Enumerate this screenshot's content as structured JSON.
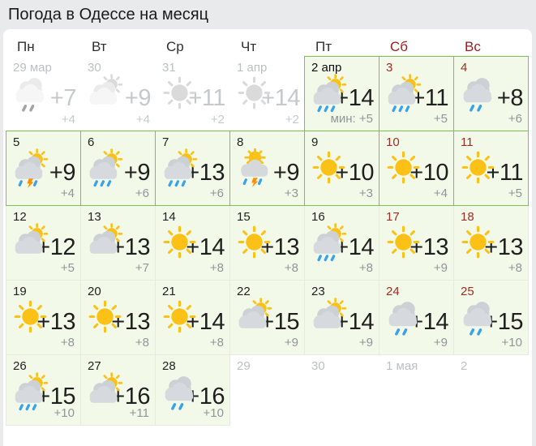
{
  "title": "Погода в Одессе на месяц",
  "weekdays": [
    {
      "label": "Пн",
      "weekend": false
    },
    {
      "label": "Вт",
      "weekend": false
    },
    {
      "label": "Ср",
      "weekend": false
    },
    {
      "label": "Чт",
      "weekend": false
    },
    {
      "label": "Пт",
      "weekend": false
    },
    {
      "label": "Сб",
      "weekend": true
    },
    {
      "label": "Вс",
      "weekend": true
    }
  ],
  "calendar": {
    "days": [
      {
        "date": "29 мар",
        "temp": "+7",
        "min": "+4",
        "icon": "cloud-rain",
        "style": "past"
      },
      {
        "date": "30",
        "temp": "+9",
        "min": "+4",
        "icon": "sun-cloud",
        "style": "past"
      },
      {
        "date": "31",
        "temp": "+11",
        "min": "+2",
        "icon": "sun",
        "style": "past"
      },
      {
        "date": "1 апр",
        "temp": "+14",
        "min": "+2",
        "icon": "sun",
        "style": "past"
      },
      {
        "date": "2 апр",
        "temp": "+14",
        "min": "+5",
        "min_prefix": "мин: ",
        "icon": "sun-cloud-rain",
        "style": "today"
      },
      {
        "date": "3",
        "temp": "+11",
        "min": "+5",
        "icon": "sun-cloud-rain",
        "style": "bordered weekend"
      },
      {
        "date": "4",
        "temp": "+8",
        "min": "+6",
        "icon": "cloud-rain",
        "style": "bordered weekend"
      },
      {
        "date": "5",
        "temp": "+9",
        "min": "+4",
        "icon": "sun-cloud-storm",
        "style": "bordered"
      },
      {
        "date": "6",
        "temp": "+9",
        "min": "+6",
        "icon": "sun-cloud-rain",
        "style": "bordered"
      },
      {
        "date": "7",
        "temp": "+13",
        "min": "+6",
        "icon": "sun-cloud-rain",
        "style": "bordered"
      },
      {
        "date": "8",
        "temp": "+9",
        "min": "+3",
        "icon": "sun-storm",
        "style": "bordered"
      },
      {
        "date": "9",
        "temp": "+10",
        "min": "+3",
        "icon": "sun",
        "style": "bordered"
      },
      {
        "date": "10",
        "temp": "+10",
        "min": "+4",
        "icon": "sun",
        "style": "bordered weekend"
      },
      {
        "date": "11",
        "temp": "+11",
        "min": "+5",
        "icon": "sun",
        "style": "bordered weekend"
      },
      {
        "date": "12",
        "temp": "+12",
        "min": "+5",
        "icon": "sun-cloud",
        "style": "plain"
      },
      {
        "date": "13",
        "temp": "+13",
        "min": "+7",
        "icon": "sun-cloud",
        "style": "plain"
      },
      {
        "date": "14",
        "temp": "+14",
        "min": "+8",
        "icon": "sun",
        "style": "plain"
      },
      {
        "date": "15",
        "temp": "+13",
        "min": "+8",
        "icon": "sun",
        "style": "plain"
      },
      {
        "date": "16",
        "temp": "+14",
        "min": "+8",
        "icon": "sun-cloud-rain",
        "style": "plain"
      },
      {
        "date": "17",
        "temp": "+13",
        "min": "+9",
        "icon": "sun",
        "style": "plain weekend"
      },
      {
        "date": "18",
        "temp": "+13",
        "min": "+8",
        "icon": "sun",
        "style": "plain weekend"
      },
      {
        "date": "19",
        "temp": "+13",
        "min": "+8",
        "icon": "sun",
        "style": "plain"
      },
      {
        "date": "20",
        "temp": "+13",
        "min": "+8",
        "icon": "sun",
        "style": "plain"
      },
      {
        "date": "21",
        "temp": "+14",
        "min": "+8",
        "icon": "sun",
        "style": "plain"
      },
      {
        "date": "22",
        "temp": "+15",
        "min": "+9",
        "icon": "sun-cloud",
        "style": "plain"
      },
      {
        "date": "23",
        "temp": "+14",
        "min": "+9",
        "icon": "sun-cloud",
        "style": "plain"
      },
      {
        "date": "24",
        "temp": "+14",
        "min": "+9",
        "icon": "cloud-rain",
        "style": "plain weekend"
      },
      {
        "date": "25",
        "temp": "+15",
        "min": "+10",
        "icon": "cloud-rain",
        "style": "plain weekend"
      },
      {
        "date": "26",
        "temp": "+15",
        "min": "+10",
        "icon": "sun-cloud-rain",
        "style": "plain"
      },
      {
        "date": "27",
        "temp": "+16",
        "min": "+11",
        "icon": "sun-cloud",
        "style": "plain"
      },
      {
        "date": "28",
        "temp": "+16",
        "min": "+10",
        "icon": "cloud-rain",
        "style": "plain"
      },
      {
        "date": "29",
        "style": "empty"
      },
      {
        "date": "30",
        "style": "empty"
      },
      {
        "date": "1 мая",
        "style": "empty"
      },
      {
        "date": "2",
        "style": "empty"
      }
    ]
  },
  "colors": {
    "accent_green": "#79c24c",
    "cell_green": "#f2f9e8",
    "weekend_red": "#9e1b1b",
    "sun_yellow": "#fbc117",
    "rain_blue": "#39a2e9",
    "lightning_orange": "#ff9000",
    "cloud_gray": "#d6dade",
    "past_gray": "#c6c9cb"
  }
}
